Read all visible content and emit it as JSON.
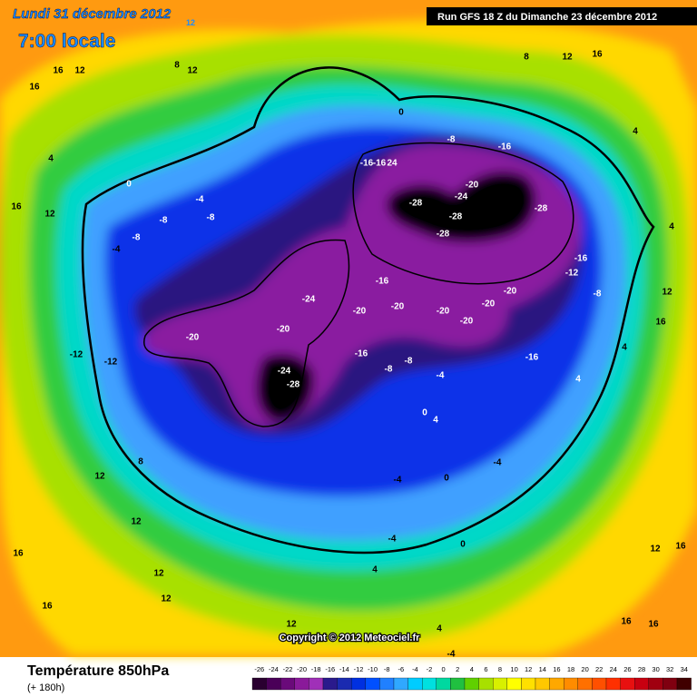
{
  "header": {
    "date": "Lundi 31 décembre 2012",
    "hour_small": "12",
    "time": "7:00 locale",
    "run": "Run GFS 18 Z du Dimanche 23 décembre 2012"
  },
  "map": {
    "copyright": "Copyright © 2012 Meteociel.fr",
    "contour_labels": [
      "16",
      "12",
      "8",
      "12",
      "16",
      "4",
      "16",
      "12",
      "0",
      "-4",
      "-8",
      "-8",
      "-8",
      "-4",
      "-12",
      "-12",
      "-20",
      "-24",
      "-20",
      "-24",
      "-28",
      "-16",
      "-16",
      "24",
      "-28",
      "-24",
      "-20",
      "-28",
      "-28",
      "-28",
      "-16",
      "-8",
      "0",
      "12",
      "16",
      "8",
      "-16",
      "-20",
      "-20",
      "-20",
      "-20",
      "-20",
      "-20",
      "-16",
      "-16",
      "-8",
      "-8",
      "-4",
      "0",
      "0",
      "-4",
      "-4",
      "4",
      "-4",
      "0",
      "4",
      "8",
      "12",
      "12",
      "16",
      "12",
      "12",
      "16",
      "12",
      "4",
      "-4",
      "12",
      "16",
      "16",
      "16",
      "4",
      "4",
      "12",
      "16",
      "-12",
      "-16",
      "-8",
      "4",
      "4"
    ]
  },
  "footer": {
    "title": "Température 850hPa",
    "lead": "(+ 180h)",
    "scale": {
      "ticks": [
        -26,
        -24,
        -22,
        -20,
        -18,
        -16,
        -14,
        -12,
        -10,
        -8,
        -6,
        -4,
        -2,
        0,
        2,
        4,
        6,
        8,
        10,
        12,
        14,
        16,
        18,
        20,
        22,
        24,
        26,
        28,
        30,
        32,
        34
      ],
      "colors": [
        "#2a0030",
        "#4a0058",
        "#6a0a7a",
        "#8a1a9a",
        "#a030b8",
        "#2a1a8c",
        "#1a2ab0",
        "#0030e0",
        "#0050ff",
        "#2080ff",
        "#30a8ff",
        "#00ccff",
        "#00e0e0",
        "#00d8a0",
        "#20c040",
        "#60d000",
        "#a8e000",
        "#d8f000",
        "#ffff00",
        "#ffe000",
        "#ffc800",
        "#ffa800",
        "#ff8c00",
        "#ff7000",
        "#ff5000",
        "#ff3000",
        "#e81010",
        "#c80010",
        "#a00010",
        "#800010",
        "#400000"
      ]
    }
  }
}
